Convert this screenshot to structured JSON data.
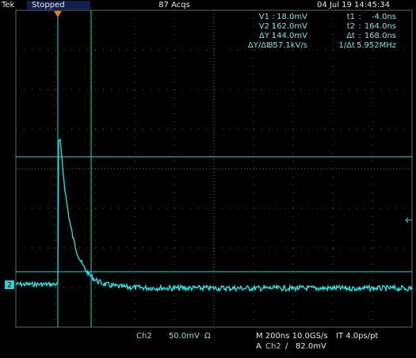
{
  "header": {
    "brand": "Tek",
    "status": "Stopped",
    "acquisitions": "87 Acqs",
    "timestamp": "04 Jul 19 14:45:34"
  },
  "readout": [
    [
      "V1",
      ":",
      "18.0mV",
      "t1",
      ":",
      "-4.0ns"
    ],
    [
      "V2",
      ":",
      "162.0mV",
      "t2",
      ":",
      "164.0ns"
    ],
    [
      "ΔY",
      ":",
      "144.0mV",
      "Δt",
      ":",
      "168.0ns"
    ],
    [
      "ΔY/Δt",
      ":",
      "857.1kV/s",
      "1/Δt",
      ":",
      "5.952MHz"
    ]
  ],
  "ground_marker": "2",
  "footer": {
    "channel": "Ch2",
    "scale": "50.0mV",
    "coupling": "Ω",
    "timebase": "M 200ns 10.0GS/s",
    "interpolation": "IT 4.0ps/pt",
    "trigger": [
      "A",
      "Ch2",
      "∕",
      "82.0mV"
    ]
  }
}
